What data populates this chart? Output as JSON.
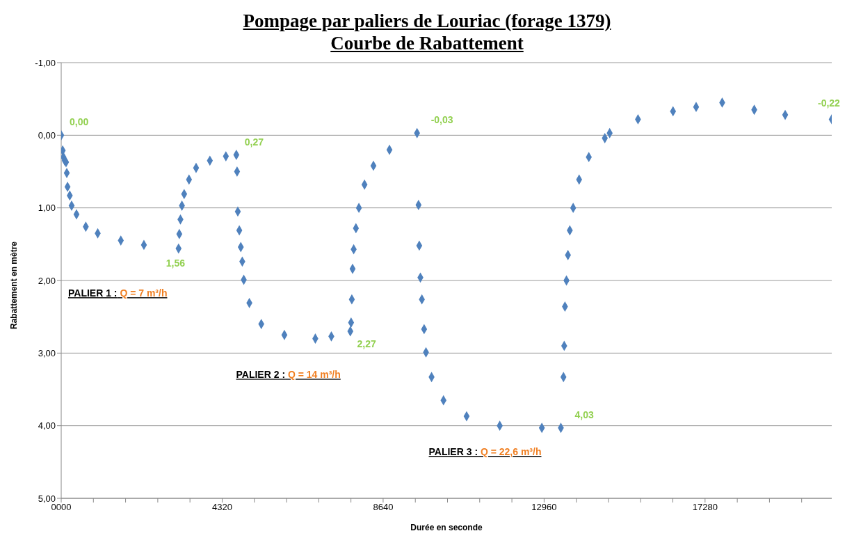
{
  "chart_data": {
    "type": "scatter",
    "title": "Pompage par paliers de Louriac (forage 1379)",
    "subtitle": "Courbe de Rabattement",
    "xlabel": "Durée en seconde",
    "ylabel": "Rabattement en mètre",
    "x": [
      0,
      40,
      60,
      95,
      130,
      150,
      170,
      230,
      280,
      410,
      660,
      980,
      1600,
      2220,
      3150,
      3170,
      3200,
      3240,
      3300,
      3430,
      3620,
      3990,
      4420,
      4700,
      4720,
      4740,
      4780,
      4820,
      4860,
      4900,
      5050,
      5370,
      5990,
      6820,
      7250,
      7760,
      7780,
      7800,
      7820,
      7850,
      7910,
      7990,
      8140,
      8380,
      8810,
      9550,
      9590,
      9610,
      9640,
      9680,
      9740,
      9790,
      9940,
      10260,
      10880,
      11770,
      12900,
      13410,
      13480,
      13500,
      13520,
      13560,
      13600,
      13650,
      13740,
      13900,
      14160,
      14590,
      14720,
      15480,
      16420,
      17040,
      17740,
      18600,
      19430,
      20680
    ],
    "series": [
      {
        "color": "#4f81bd",
        "values": [
          0,
          0.21,
          0.3,
          0.35,
          0.37,
          0.52,
          0.71,
          0.83,
          0.97,
          1.09,
          1.26,
          1.35,
          1.45,
          1.51,
          1.56,
          1.36,
          1.16,
          0.97,
          0.81,
          0.61,
          0.45,
          0.35,
          0.29,
          0.27,
          0.5,
          1.05,
          1.31,
          1.54,
          1.74,
          1.99,
          2.31,
          2.6,
          2.75,
          2.8,
          2.77,
          2.7,
          2.58,
          2.26,
          1.84,
          1.57,
          1.28,
          1.0,
          0.68,
          0.42,
          0.2,
          -0.03,
          0.96,
          1.52,
          1.96,
          2.26,
          2.67,
          2.99,
          3.33,
          3.65,
          3.87,
          4.0,
          4.03,
          4.03,
          3.33,
          2.9,
          2.36,
          2.0,
          1.65,
          1.31,
          1.0,
          0.61,
          0.3,
          0.04,
          -0.03,
          -0.22,
          -0.33,
          -0.39,
          -0.45,
          -0.35,
          -0.28,
          -0.22
        ],
        "value_labels": [
          "0,00",
          null,
          null,
          null,
          null,
          null,
          null,
          null,
          null,
          null,
          null,
          null,
          null,
          null,
          "1,56",
          null,
          null,
          null,
          null,
          null,
          null,
          null,
          null,
          "0,27",
          null,
          null,
          null,
          null,
          null,
          null,
          null,
          null,
          null,
          null,
          null,
          null,
          null,
          null,
          null,
          null,
          null,
          null,
          null,
          null,
          null,
          "-0,03",
          null,
          null,
          null,
          null,
          null,
          null,
          null,
          null,
          null,
          null,
          null,
          "4,03",
          null,
          null,
          null,
          null,
          null,
          null,
          null,
          null,
          null,
          null,
          null,
          null,
          null,
          null,
          null,
          null,
          null,
          "-0,22"
        ]
      }
    ],
    "xlim": [
      0,
      20680
    ],
    "xticks": [
      {
        "value": 0,
        "label": "0000"
      },
      {
        "value": 864,
        "label": null
      },
      {
        "value": 1728,
        "label": null
      },
      {
        "value": 2592,
        "label": null
      },
      {
        "value": 3456,
        "label": null
      },
      4320,
      {
        "value": 5184,
        "label": null
      },
      {
        "value": 6048,
        "label": null
      },
      {
        "value": 6912,
        "label": null
      },
      {
        "value": 7776,
        "label": null
      },
      8640,
      {
        "value": 9504,
        "label": null
      },
      {
        "value": 10368,
        "label": null
      },
      {
        "value": 11232,
        "label": null
      },
      {
        "value": 12096,
        "label": null
      },
      12960,
      {
        "value": 13824,
        "label": null
      },
      {
        "value": 14688,
        "label": null
      },
      {
        "value": 15552,
        "label": null
      },
      {
        "value": 16416,
        "label": null
      },
      17280,
      {
        "value": 18144,
        "label": null
      },
      {
        "value": 19008,
        "label": null
      },
      {
        "value": 19872,
        "label": null
      }
    ],
    "ylim": [
      5,
      -1
    ],
    "yticks": [
      {
        "value": -1,
        "label": "-1,00"
      },
      {
        "value": 0,
        "label": "0,00"
      },
      {
        "value": 1,
        "label": "1,00"
      },
      {
        "value": 2,
        "label": "2,00"
      },
      {
        "value": 3,
        "label": "3,00"
      },
      {
        "value": 4,
        "label": "4,00"
      },
      {
        "value": 5,
        "label": "5,00"
      }
    ],
    "grid": "y",
    "marker": "diamond",
    "legend": false,
    "annotations": [
      "PALIER 1 : Q = 7 m³/h",
      "PALIER 2 : Q = 14 m³/h",
      "PALIER 3 : Q = 22,6 m³/h",
      "2,27"
    ]
  }
}
